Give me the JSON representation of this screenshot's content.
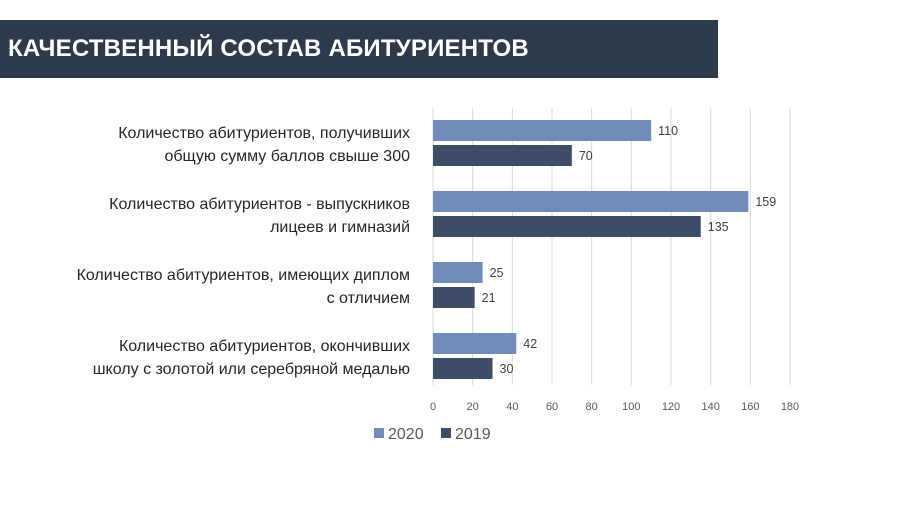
{
  "header": {
    "title": "КАЧЕСТВЕННЫЙ СОСТАВ АБИТУРИЕНТОВ"
  },
  "colors": {
    "header_bg": "#2d3a4c",
    "series_2020": "#6f8bb8",
    "series_2019": "#3e4c66",
    "grid": "#d9d9d9"
  },
  "chart_data": {
    "type": "bar",
    "orientation": "horizontal",
    "categories": [
      [
        "Количество абитуриентов, получивших",
        "общую сумму баллов  свыше 300"
      ],
      [
        "Количество абитуриентов - выпускников",
        "лицеев и гимназий"
      ],
      [
        "Количество абитуриентов, имеющих диплом",
        "с отличием"
      ],
      [
        "Количество абитуриентов, окончивших",
        "школу с золотой или серебряной медалью"
      ]
    ],
    "series": [
      {
        "name": "2020",
        "values": [
          110,
          159,
          25,
          42
        ]
      },
      {
        "name": "2019",
        "values": [
          70,
          135,
          21,
          30
        ]
      }
    ],
    "xlim": [
      0,
      180
    ],
    "xticks": [
      0,
      20,
      40,
      60,
      80,
      100,
      120,
      140,
      160,
      180
    ],
    "grid": true,
    "legend": "bottom",
    "data_labels": true
  }
}
